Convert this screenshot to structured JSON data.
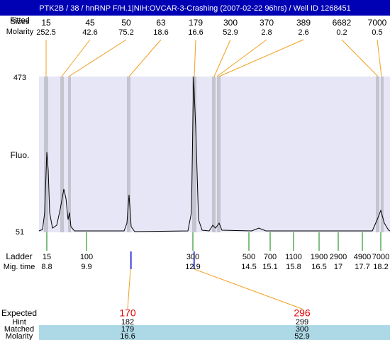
{
  "title": "PTK2B / 38 / hnRNP F/H.1|NIH:OVCAR-3-Crashing (2007-02-22 96hrs) / Well ID 1268451",
  "header_labels": {
    "fitted": "Fitted",
    "sizes": "Sizes",
    "molarity": "Molarity"
  },
  "peaks": {
    "sizes": [
      15,
      45,
      50,
      63,
      179,
      300,
      370,
      389,
      6682,
      7000
    ],
    "molarity": [
      252.5,
      42.6,
      75.2,
      18.6,
      16.6,
      52.9,
      2.8,
      2.6,
      0.2,
      0.5
    ]
  },
  "y_axis": {
    "label": "Fluo.",
    "max": 473,
    "min": 51
  },
  "ladder": {
    "label": "Ladder",
    "time_label": "Mig. time",
    "sizes": [
      15,
      100,
      300,
      500,
      700,
      1100,
      1900,
      2900,
      4900,
      7000
    ],
    "times": [
      8.8,
      9.9,
      12.9,
      14.5,
      15.1,
      15.8,
      16.5,
      17,
      17.7,
      18.2
    ]
  },
  "expected": {
    "row_labels": [
      "Expected",
      "Hint",
      "Matched",
      "Molarity"
    ],
    "expected": [
      170,
      296
    ],
    "hint": [
      182,
      299
    ],
    "matched": [
      179,
      300
    ],
    "molarity": [
      16.6,
      52.9
    ]
  }
}
